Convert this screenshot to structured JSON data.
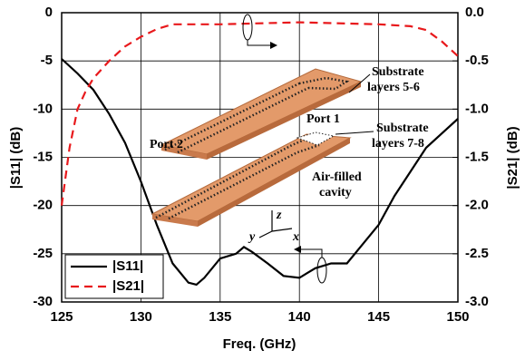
{
  "chart_data": {
    "type": "line",
    "x_label": "Freq. (GHz)",
    "y_label": "|S11| (dB)",
    "y2_label": "|S21| (dB)",
    "xlim": [
      125,
      150
    ],
    "xticks": [
      125,
      130,
      135,
      140,
      145,
      150
    ],
    "ylim": [
      -30,
      0
    ],
    "yticks": [
      -30,
      -25,
      -20,
      -15,
      -10,
      -5,
      0
    ],
    "y2lim": [
      -3,
      0
    ],
    "y2ticks": [
      {
        "value": -3,
        "label": "-3.0"
      },
      -2.5,
      {
        "value": -2,
        "label": "-2.0"
      },
      -1.5,
      {
        "value": -1,
        "label": "-1.0"
      },
      -0.5,
      {
        "value": 0,
        "label": "0.0"
      }
    ],
    "grid": true,
    "legend": "lower left",
    "series": [
      {
        "name": "|S11|",
        "color": "#000000",
        "dash": "solid",
        "x": [
          125,
          126,
          127,
          128,
          129,
          130,
          131,
          132,
          133,
          133.5,
          134,
          135,
          136,
          136.5,
          137,
          138,
          139,
          140,
          140.5,
          141,
          142,
          143,
          144,
          145,
          146,
          147,
          148,
          149,
          150
        ],
        "values": [
          -4.8,
          -6.3,
          -8,
          -10.5,
          -13.5,
          -17.5,
          -22,
          -26,
          -28,
          -28.2,
          -27.5,
          -25.5,
          -25,
          -24.3,
          -24.8,
          -26,
          -27.3,
          -27.5,
          -27,
          -26.5,
          -26,
          -26,
          -24,
          -22,
          -19,
          -16.5,
          -14,
          -12.5,
          -11
        ]
      },
      {
        "name": "|S21|",
        "color": "#e8191c",
        "dash": "dashed",
        "axis": "y2",
        "x": [
          125,
          125.5,
          126,
          126.5,
          127,
          128,
          129,
          130,
          131,
          132,
          135,
          140,
          145,
          147,
          148,
          149,
          150
        ],
        "values": [
          -2,
          -1.4,
          -1,
          -0.82,
          -0.68,
          -0.5,
          -0.35,
          -0.25,
          -0.17,
          -0.12,
          -0.12,
          -0.1,
          -0.12,
          -0.14,
          -0.18,
          -0.3,
          -0.45
        ]
      }
    ],
    "annotations": [
      "Substrate",
      "layers 5-6",
      "Substrate",
      "layers 7-8",
      "Port 1",
      "Port 2",
      "Air-filled",
      "cavity",
      "z",
      "y",
      "x"
    ]
  }
}
